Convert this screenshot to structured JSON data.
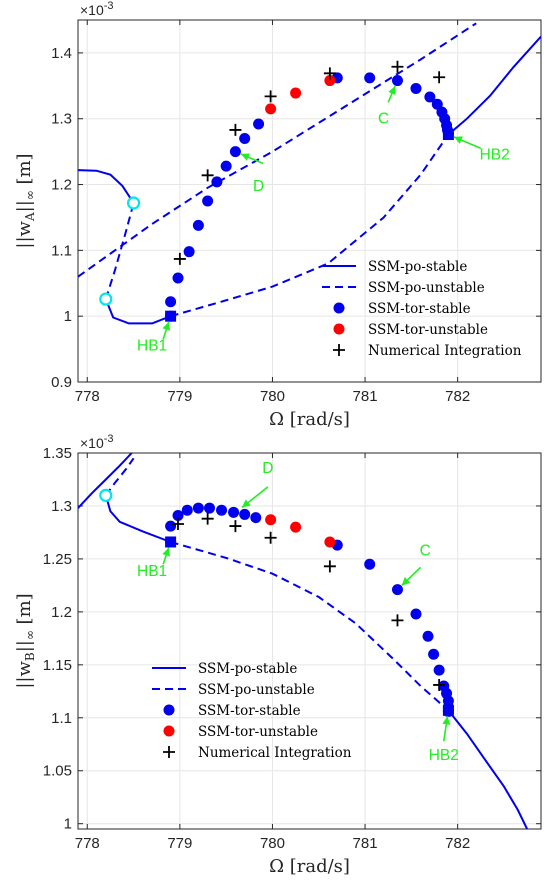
{
  "colors": {
    "blue": "#0000ee",
    "red": "#ff0000",
    "cyan": "#00e5ee",
    "green": "#22ee22",
    "black": "#000000"
  },
  "chart_data": [
    {
      "type": "line",
      "ylabel_base": "||w",
      "ylabel_sub": "A",
      "ylabel_tail": "||",
      "ylabel_inf": "∞",
      "ylabel_unit": " [m]",
      "xlabel": "Ω [rad/s]",
      "exponent_base": "×10",
      "exponent_power": "-3",
      "xlim": [
        777.9,
        782.9
      ],
      "ylim": [
        0.9,
        1.45
      ],
      "xticks": [
        778,
        779,
        780,
        781,
        782
      ],
      "yticks": [
        0.9,
        1.0,
        1.1,
        1.2,
        1.3,
        1.4
      ],
      "xtick_labels": [
        "778",
        "779",
        "780",
        "781",
        "782"
      ],
      "ytick_labels": [
        "0.9",
        "1",
        "1.1",
        "1.2",
        "1.3",
        "1.4"
      ],
      "legend": [
        "SSM-po-stable",
        "SSM-po-unstable",
        "SSM-tor-stable",
        "SSM-tor-unstable",
        "Numerical Integration"
      ],
      "stable_branches": [
        [
          [
            777.9,
            1.222
          ],
          [
            778.1,
            1.221
          ],
          [
            778.25,
            1.215
          ],
          [
            778.38,
            1.198
          ],
          [
            778.5,
            1.172
          ]
        ],
        [
          [
            778.2,
            1.026
          ],
          [
            778.28,
            0.998
          ],
          [
            778.45,
            0.989
          ],
          [
            778.7,
            0.989
          ],
          [
            778.9,
            1.0
          ]
        ],
        [
          [
            781.9,
            1.276
          ],
          [
            782.1,
            1.3
          ],
          [
            782.35,
            1.335
          ],
          [
            782.6,
            1.378
          ],
          [
            782.9,
            1.425
          ]
        ]
      ],
      "unstable_branches": [
        [
          [
            777.9,
            1.06
          ],
          [
            778.2,
            1.09
          ],
          [
            778.7,
            1.14
          ],
          [
            779.3,
            1.195
          ],
          [
            780.0,
            1.25
          ],
          [
            780.8,
            1.32
          ],
          [
            781.6,
            1.39
          ],
          [
            782.2,
            1.445
          ]
        ],
        [
          [
            778.2,
            1.026
          ],
          [
            778.3,
            1.07
          ],
          [
            778.42,
            1.13
          ],
          [
            778.5,
            1.172
          ]
        ],
        [
          [
            778.9,
            1.0
          ],
          [
            779.4,
            1.02
          ],
          [
            780.0,
            1.045
          ],
          [
            780.6,
            1.08
          ],
          [
            781.2,
            1.15
          ],
          [
            781.6,
            1.215
          ],
          [
            781.9,
            1.276
          ]
        ]
      ],
      "fold_points": [
        [
          778.2,
          1.026
        ],
        [
          778.5,
          1.172
        ]
      ],
      "hopf_points": [
        [
          778.9,
          1.0
        ],
        [
          781.9,
          1.276
        ]
      ],
      "tor_stable": [
        [
          778.9,
          1.0
        ],
        [
          778.9,
          1.022
        ],
        [
          778.98,
          1.058
        ],
        [
          779.1,
          1.098
        ],
        [
          779.2,
          1.138
        ],
        [
          779.3,
          1.175
        ],
        [
          779.4,
          1.204
        ],
        [
          779.5,
          1.228
        ],
        [
          779.6,
          1.25
        ],
        [
          779.7,
          1.27
        ],
        [
          779.85,
          1.292
        ],
        [
          780.7,
          1.362
        ],
        [
          781.05,
          1.362
        ],
        [
          781.35,
          1.358
        ],
        [
          781.55,
          1.346
        ],
        [
          781.7,
          1.333
        ],
        [
          781.78,
          1.322
        ],
        [
          781.83,
          1.31
        ],
        [
          781.86,
          1.3
        ],
        [
          781.88,
          1.29
        ],
        [
          781.89,
          1.283
        ],
        [
          781.9,
          1.277
        ]
      ],
      "tor_unstable": [
        [
          779.98,
          1.315
        ],
        [
          780.25,
          1.339
        ],
        [
          780.62,
          1.358
        ]
      ],
      "numerical": [
        [
          779.0,
          1.087
        ],
        [
          779.3,
          1.214
        ],
        [
          779.6,
          1.283
        ],
        [
          779.98,
          1.334
        ],
        [
          780.62,
          1.369
        ],
        [
          781.35,
          1.379
        ],
        [
          781.8,
          1.363
        ]
      ],
      "annotations": [
        {
          "label": "HB1",
          "at": [
            778.9,
            1.0
          ],
          "text_at": [
            778.7,
            0.948
          ],
          "tail_at": [
            778.82,
            0.965
          ]
        },
        {
          "label": "D",
          "at": [
            779.6,
            1.25
          ],
          "text_at": [
            779.85,
            1.19
          ],
          "tail_at": [
            779.9,
            1.232
          ]
        },
        {
          "label": "C",
          "at": [
            781.35,
            1.358
          ],
          "text_at": [
            781.2,
            1.293
          ],
          "tail_at": [
            781.25,
            1.325
          ]
        },
        {
          "label": "HB2",
          "at": [
            781.9,
            1.276
          ],
          "text_at": [
            782.4,
            1.238
          ],
          "tail_at": [
            782.25,
            1.255
          ]
        }
      ]
    },
    {
      "type": "line",
      "ylabel_base": "||w",
      "ylabel_sub": "B",
      "ylabel_tail": "||",
      "ylabel_inf": "∞",
      "ylabel_unit": " [m]",
      "xlabel": "Ω [rad/s]",
      "exponent_base": "×10",
      "exponent_power": "-3",
      "xlim": [
        777.9,
        782.9
      ],
      "ylim": [
        0.995,
        1.35
      ],
      "xticks": [
        778,
        779,
        780,
        781,
        782
      ],
      "yticks": [
        1.0,
        1.05,
        1.1,
        1.15,
        1.2,
        1.25,
        1.3,
        1.35
      ],
      "xtick_labels": [
        "778",
        "779",
        "780",
        "781",
        "782"
      ],
      "ytick_labels": [
        "1",
        "1.05",
        "1.1",
        "1.15",
        "1.2",
        "1.25",
        "1.3",
        "1.35"
      ],
      "legend": [
        "SSM-po-stable",
        "SSM-po-unstable",
        "SSM-tor-stable",
        "SSM-tor-unstable",
        "Numerical Integration"
      ],
      "stable_branches": [
        [
          [
            777.9,
            1.298
          ],
          [
            778.05,
            1.312
          ],
          [
            778.2,
            1.325
          ],
          [
            778.35,
            1.338
          ],
          [
            778.48,
            1.35
          ]
        ],
        [
          [
            778.2,
            1.31
          ],
          [
            778.25,
            1.295
          ],
          [
            778.35,
            1.285
          ],
          [
            778.6,
            1.276
          ],
          [
            778.9,
            1.266
          ]
        ],
        [
          [
            781.9,
            1.107
          ],
          [
            782.1,
            1.085
          ],
          [
            782.3,
            1.06
          ],
          [
            782.5,
            1.035
          ],
          [
            782.65,
            1.013
          ],
          [
            782.75,
            0.995
          ]
        ]
      ],
      "unstable_branches": [
        [
          [
            778.2,
            1.31
          ],
          [
            778.3,
            1.322
          ],
          [
            778.42,
            1.335
          ],
          [
            778.5,
            1.345
          ]
        ],
        [
          [
            778.9,
            1.266
          ],
          [
            779.5,
            1.251
          ],
          [
            780.0,
            1.236
          ],
          [
            780.5,
            1.214
          ],
          [
            780.9,
            1.189
          ],
          [
            781.3,
            1.156
          ],
          [
            781.6,
            1.13
          ],
          [
            781.9,
            1.107
          ]
        ]
      ],
      "fold_points": [
        [
          778.2,
          1.31
        ]
      ],
      "hopf_points": [
        [
          778.9,
          1.266
        ],
        [
          781.9,
          1.107
        ]
      ],
      "tor_stable": [
        [
          778.9,
          1.266
        ],
        [
          778.9,
          1.281
        ],
        [
          778.98,
          1.291
        ],
        [
          779.08,
          1.296
        ],
        [
          779.2,
          1.298
        ],
        [
          779.32,
          1.298
        ],
        [
          779.45,
          1.296
        ],
        [
          779.58,
          1.294
        ],
        [
          779.7,
          1.292
        ],
        [
          779.82,
          1.289
        ],
        [
          780.7,
          1.263
        ],
        [
          781.05,
          1.245
        ],
        [
          781.35,
          1.221
        ],
        [
          781.55,
          1.198
        ],
        [
          781.68,
          1.177
        ],
        [
          781.74,
          1.16
        ],
        [
          781.8,
          1.145
        ],
        [
          781.85,
          1.13
        ],
        [
          781.88,
          1.123
        ],
        [
          781.9,
          1.116
        ],
        [
          781.9,
          1.11
        ],
        [
          781.9,
          1.106
        ]
      ],
      "tor_unstable": [
        [
          779.98,
          1.287
        ],
        [
          780.25,
          1.28
        ],
        [
          780.62,
          1.266
        ]
      ],
      "numerical": [
        [
          778.98,
          1.283
        ],
        [
          779.3,
          1.288
        ],
        [
          779.6,
          1.281
        ],
        [
          779.98,
          1.27
        ],
        [
          780.62,
          1.243
        ],
        [
          781.35,
          1.192
        ],
        [
          781.8,
          1.131
        ]
      ],
      "annotations": [
        {
          "label": "HB1",
          "at": [
            778.9,
            1.266
          ],
          "text_at": [
            778.7,
            1.234
          ],
          "tail_at": [
            778.82,
            1.245
          ]
        },
        {
          "label": "D",
          "at": [
            779.62,
            1.295
          ],
          "text_at": [
            779.95,
            1.331
          ],
          "tail_at": [
            779.95,
            1.318
          ]
        },
        {
          "label": "C",
          "at": [
            781.35,
            1.221
          ],
          "text_at": [
            781.65,
            1.253
          ],
          "tail_at": [
            781.6,
            1.242
          ]
        },
        {
          "label": "HB2",
          "at": [
            781.9,
            1.107
          ],
          "text_at": [
            781.85,
            1.06
          ],
          "tail_at": [
            781.85,
            1.078
          ]
        }
      ]
    }
  ]
}
